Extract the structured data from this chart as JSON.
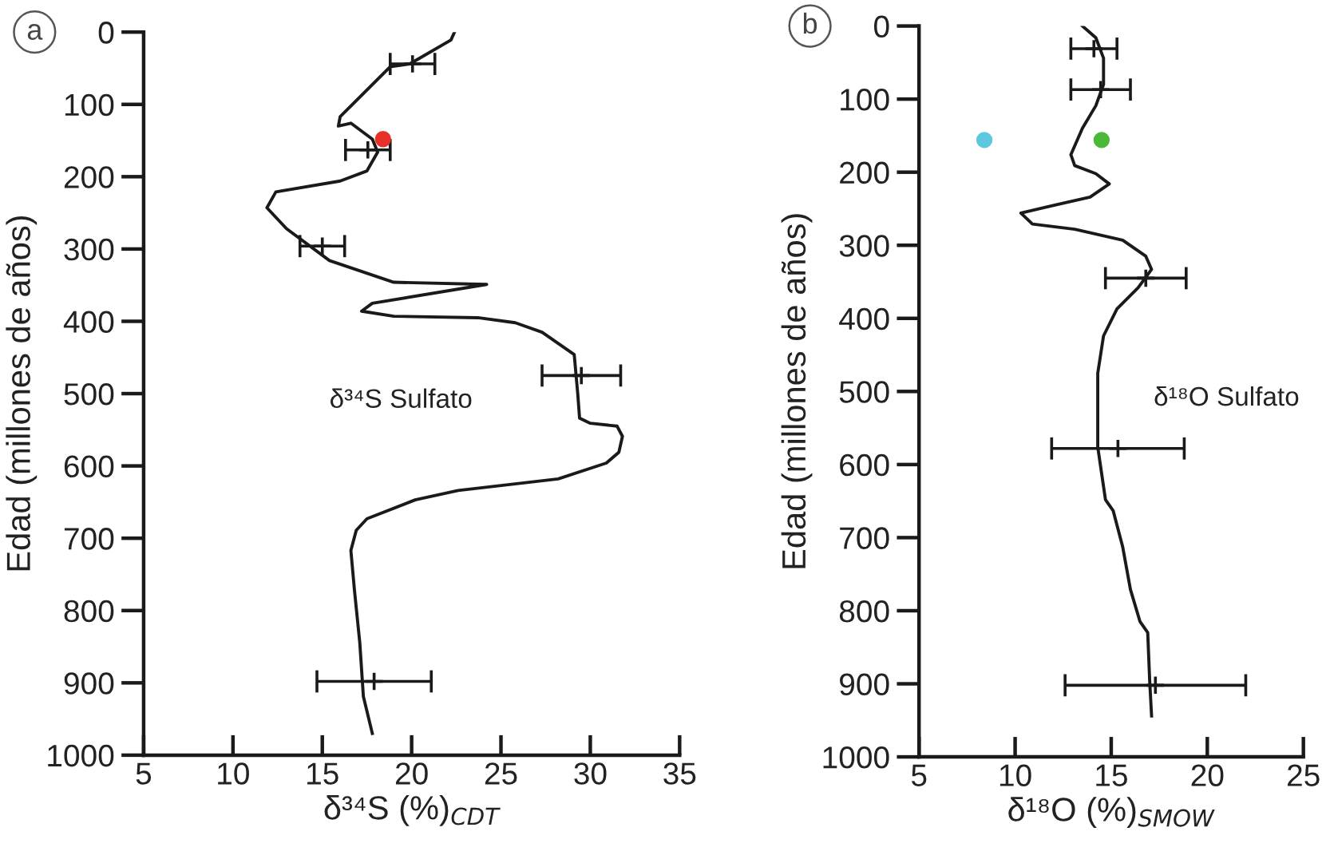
{
  "chart_data": [
    {
      "type": "line",
      "xlabel": "δ³⁴S (%)$_{CDT}$",
      "ylabel": "Edad (millones de años)",
      "xlim": [
        5,
        35
      ],
      "xticks": [
        5,
        10,
        15,
        20,
        25,
        30,
        35
      ],
      "ylim": [
        1000,
        0
      ],
      "yticks": [
        0,
        100,
        200,
        300,
        400,
        500,
        600,
        700,
        800,
        900,
        1000
      ],
      "grid": false,
      "annotations": [
        "a",
        "δ³⁴S Sulfato"
      ],
      "series": [
        {
          "color": "#1a1a1a",
          "marker": "none",
          "line_style": "solid",
          "x": [
            22.4,
            22.2,
            19.9,
            18.8,
            16.0,
            15.9,
            16.6,
            17.8,
            18.1,
            17.5,
            16.0,
            12.4,
            11.9,
            13.0,
            15.4,
            19.0,
            24.2,
            17.8,
            17.2,
            19.0,
            23.7,
            25.8,
            27.3,
            29.1,
            29.3,
            29.4,
            30.0,
            31.5,
            31.8,
            31.6,
            30.9,
            28.2,
            22.6,
            20.2,
            17.5,
            16.9,
            16.6,
            16.8,
            17.1,
            17.3,
            17.8
          ],
          "values": [
            0,
            11,
            44,
            48,
            117,
            130,
            126,
            148,
            166,
            192,
            206,
            221,
            243,
            272,
            316,
            346,
            349,
            375,
            386,
            393,
            395,
            402,
            415,
            446,
            501,
            534,
            541,
            545,
            559,
            581,
            596,
            618,
            634,
            647,
            673,
            689,
            717,
            772,
            845,
            919,
            970
          ]
        },
        {
          "type": "scatter",
          "color": "#1a1a1a",
          "marker": "cross",
          "x": [
            20.05,
            17.55,
            15.0,
            29.5,
            17.9
          ],
          "values": [
            44,
            163,
            296,
            475,
            898
          ],
          "xerrors": [
            1.25,
            1.25,
            1.25,
            2.2,
            3.2
          ]
        },
        {
          "type": "scatter",
          "color": "#e8302a",
          "marker": "circle",
          "x": [
            18.4
          ],
          "values": [
            148
          ]
        }
      ]
    },
    {
      "type": "line",
      "xlabel": "δ¹⁸O (%)$_{SMOW}$",
      "ylabel": "Edad (millones de años)",
      "xlim": [
        5,
        25
      ],
      "xticks": [
        5,
        10,
        15,
        20,
        25
      ],
      "ylim": [
        1000,
        0
      ],
      "yticks": [
        0,
        100,
        200,
        300,
        400,
        500,
        600,
        700,
        800,
        900,
        1000
      ],
      "grid": false,
      "annotations": [
        "b",
        "δ¹⁸O Sulfato"
      ],
      "series": [
        {
          "color": "#1a1a1a",
          "marker": "none",
          "line_style": "solid",
          "x": [
            13.5,
            14.2,
            14.6,
            14.6,
            14.2,
            13.5,
            12.9,
            13.1,
            14.2,
            14.9,
            13.9,
            11.4,
            10.3,
            10.9,
            13.1,
            15.6,
            16.8,
            17.1,
            16.4,
            15.3,
            14.6,
            14.3,
            14.3,
            14.3,
            14.5,
            14.7,
            15.1,
            15.6,
            16.0,
            16.5,
            16.9,
            17.0,
            17.1
          ],
          "values": [
            0,
            16,
            44,
            80,
            109,
            140,
            176,
            191,
            202,
            216,
            234,
            249,
            256,
            271,
            278,
            293,
            315,
            333,
            358,
            387,
            424,
            475,
            533,
            576,
            612,
            648,
            663,
            713,
            771,
            815,
            830,
            895,
            944
          ]
        },
        {
          "type": "scatter",
          "color": "#1a1a1a",
          "marker": "cross",
          "x": [
            14.1,
            14.45,
            16.8,
            15.35,
            17.3
          ],
          "values": [
            31,
            87,
            345,
            578,
            902
          ],
          "xerrors": [
            1.2,
            1.55,
            2.1,
            3.45,
            4.7
          ]
        },
        {
          "type": "scatter",
          "color": "#5bc8e0",
          "marker": "circle",
          "x": [
            8.4
          ],
          "values": [
            156
          ]
        },
        {
          "type": "scatter",
          "color": "#4cb83a",
          "marker": "circle",
          "x": [
            14.5
          ],
          "values": [
            156
          ]
        }
      ]
    }
  ]
}
